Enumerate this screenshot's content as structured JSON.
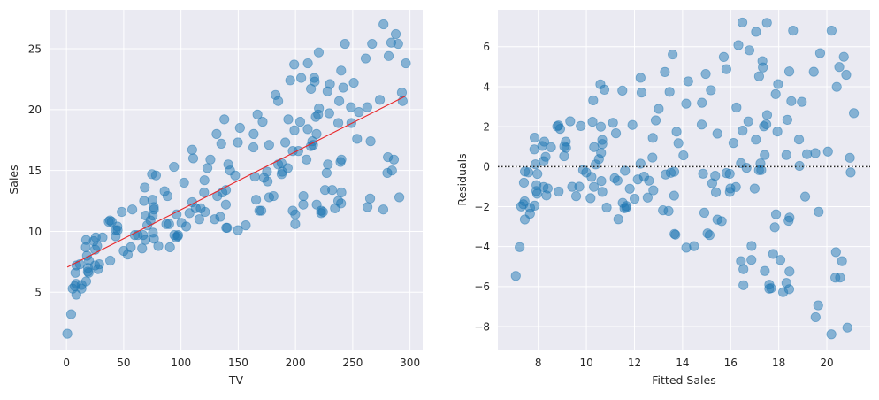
{
  "figure": {
    "background": "#ffffff",
    "axes_facecolor": "#eaeaf2",
    "grid_color": "#ffffff",
    "point_color": "#1f77b4",
    "point_alpha": 0.5,
    "fit_line_color": "#e8272a",
    "zero_line_color": "#262626"
  },
  "chart_data": [
    {
      "type": "scatter",
      "title": "",
      "xlabel": "TV",
      "ylabel": "Sales",
      "xlim": [
        -14.8,
        311.1
      ],
      "ylim": [
        0.3,
        28.2
      ],
      "xticks": [
        0,
        50,
        100,
        150,
        200,
        250,
        300
      ],
      "yticks": [
        5,
        10,
        15,
        20,
        25
      ],
      "grid": true,
      "legend": null,
      "regression_line": {
        "intercept": 7.0326,
        "slope": 0.04754,
        "x_range": [
          0.7,
          296.4
        ],
        "color": "#e8272a"
      },
      "x": [
        230.1,
        44.5,
        17.2,
        151.5,
        180.8,
        8.7,
        57.5,
        120.2,
        8.6,
        199.8,
        66.1,
        214.7,
        23.8,
        97.5,
        204.1,
        195.4,
        67.8,
        281.4,
        69.2,
        147.3,
        218.4,
        237.4,
        13.2,
        228.3,
        62.3,
        262.9,
        142.9,
        240.1,
        248.8,
        70.6,
        292.9,
        112.9,
        97.2,
        265.6,
        95.7,
        290.7,
        266.9,
        74.7,
        43.1,
        228.0,
        202.5,
        177.0,
        293.6,
        206.9,
        25.1,
        175.1,
        89.7,
        239.9,
        227.2,
        66.9,
        199.8,
        100.4,
        216.4,
        182.6,
        262.7,
        198.9,
        7.3,
        136.2,
        210.8,
        210.7,
        53.5,
        261.3,
        239.3,
        102.7,
        131.1,
        69.0,
        31.5,
        139.3,
        237.4,
        216.8,
        199.1,
        109.8,
        26.8,
        129.4,
        213.4,
        16.9,
        27.5,
        120.5,
        5.4,
        116.0,
        76.4,
        239.8,
        75.3,
        68.4,
        213.5,
        193.2,
        76.3,
        110.7,
        88.3,
        109.8,
        134.3,
        28.6,
        217.7,
        250.9,
        107.4,
        163.3,
        197.6,
        184.9,
        289.7,
        135.2,
        222.4,
        296.4,
        280.2,
        187.9,
        238.2,
        137.9,
        25.0,
        90.4,
        13.1,
        255.4,
        225.8,
        241.7,
        175.7,
        209.6,
        78.2,
        75.1,
        139.2,
        76.4,
        125.7,
        19.4,
        141.3,
        18.8,
        224.0,
        123.1,
        229.5,
        87.2,
        7.8,
        80.2,
        220.3,
        59.6,
        0.7,
        265.2,
        8.4,
        219.8,
        36.9,
        48.3,
        25.6,
        273.7,
        43.0,
        184.9,
        73.4,
        193.7,
        220.5,
        104.6,
        96.2,
        140.3,
        240.1,
        243.2,
        38.0,
        44.7,
        280.7,
        121.0,
        197.6,
        171.3,
        187.8,
        4.1,
        93.9,
        149.8,
        11.7,
        131.7,
        172.5,
        85.7,
        188.4,
        163.5,
        117.2,
        234.5,
        17.9,
        206.8,
        215.4,
        284.3,
        50.0,
        164.5,
        19.6,
        168.4,
        222.4,
        276.9,
        248.4,
        170.2,
        276.7,
        165.6,
        156.6,
        218.5,
        56.2,
        287.6,
        253.8,
        205.0,
        139.5,
        191.1,
        286.0,
        18.7,
        39.5,
        75.5,
        17.2,
        166.8,
        149.7,
        38.2,
        94.2,
        177.0,
        283.6,
        232.1
      ],
      "y": [
        22.1,
        10.4,
        9.3,
        18.5,
        12.9,
        7.2,
        11.8,
        13.2,
        4.8,
        10.6,
        8.6,
        17.4,
        9.2,
        9.7,
        19.0,
        22.4,
        12.5,
        24.4,
        11.3,
        14.6,
        18.0,
        12.5,
        5.6,
        15.5,
        9.7,
        12.0,
        15.0,
        15.9,
        18.9,
        10.5,
        21.4,
        11.9,
        9.6,
        17.4,
        9.5,
        12.8,
        25.4,
        14.7,
        10.1,
        21.5,
        16.6,
        17.1,
        20.7,
        12.9,
        8.5,
        14.9,
        10.6,
        23.2,
        14.8,
        9.7,
        11.4,
        10.7,
        22.6,
        21.2,
        20.2,
        23.7,
        5.5,
        13.2,
        23.8,
        18.4,
        8.1,
        24.2,
        15.7,
        14.0,
        18.0,
        9.3,
        9.5,
        13.4,
        18.9,
        22.3,
        18.3,
        12.4,
        8.8,
        11.0,
        17.0,
        8.7,
        6.9,
        14.2,
        5.3,
        11.0,
        11.8,
        12.3,
        11.3,
        13.6,
        21.7,
        15.2,
        12.0,
        16.0,
        12.9,
        16.7,
        11.2,
        7.3,
        19.4,
        22.2,
        11.5,
        16.9,
        11.7,
        15.5,
        25.4,
        17.2,
        11.7,
        23.8,
        14.8,
        14.7,
        20.7,
        19.2,
        7.2,
        8.7,
        5.3,
        19.8,
        13.4,
        21.8,
        14.1,
        15.9,
        14.6,
        12.6,
        12.2,
        9.4,
        15.9,
        6.6,
        15.5,
        7.0,
        11.6,
        15.2,
        19.7,
        10.6,
        6.6,
        8.8,
        24.7,
        9.7,
        1.6,
        12.7,
        5.7,
        19.6,
        10.8,
        11.6,
        9.5,
        20.8,
        9.6,
        20.7,
        10.9,
        19.2,
        20.1,
        10.4,
        11.4,
        10.3,
        13.2,
        25.4,
        10.9,
        10.1,
        16.1,
        11.6,
        16.6,
        19.0,
        15.6,
        3.2,
        15.3,
        10.1,
        7.3,
        12.9,
        14.4,
        13.3,
        14.9,
        18.0,
        11.9,
        11.9,
        8.0,
        12.2,
        17.1,
        15.0,
        8.4,
        14.5,
        7.6,
        11.7,
        11.5,
        27.0,
        20.2,
        11.7,
        11.8,
        12.6,
        10.5,
        12.2,
        8.7,
        26.2,
        17.6,
        22.6,
        10.3,
        17.3,
        15.9,
        6.7,
        10.8,
        9.9,
        5.9,
        19.6,
        17.3,
        7.6,
        9.7,
        12.8,
        25.5,
        13.4
      ]
    },
    {
      "type": "scatter",
      "title": "",
      "xlabel": "Fitted Sales",
      "ylabel": "Residuals",
      "xlim": [
        6.32,
        21.8
      ],
      "ylim": [
        -9.15,
        7.85
      ],
      "xticks": [
        8,
        10,
        12,
        14,
        16,
        18,
        20
      ],
      "yticks": [
        -8,
        -6,
        -4,
        -2,
        0,
        2,
        4,
        6
      ],
      "grid": true,
      "legend": null,
      "reference_line": {
        "y": 0,
        "style": "dotted",
        "color": "#262626"
      },
      "derived_from": "fitted = 7.0326 + 0.04754*TV, residual = Sales - fitted (same 200 points as left chart)"
    }
  ]
}
